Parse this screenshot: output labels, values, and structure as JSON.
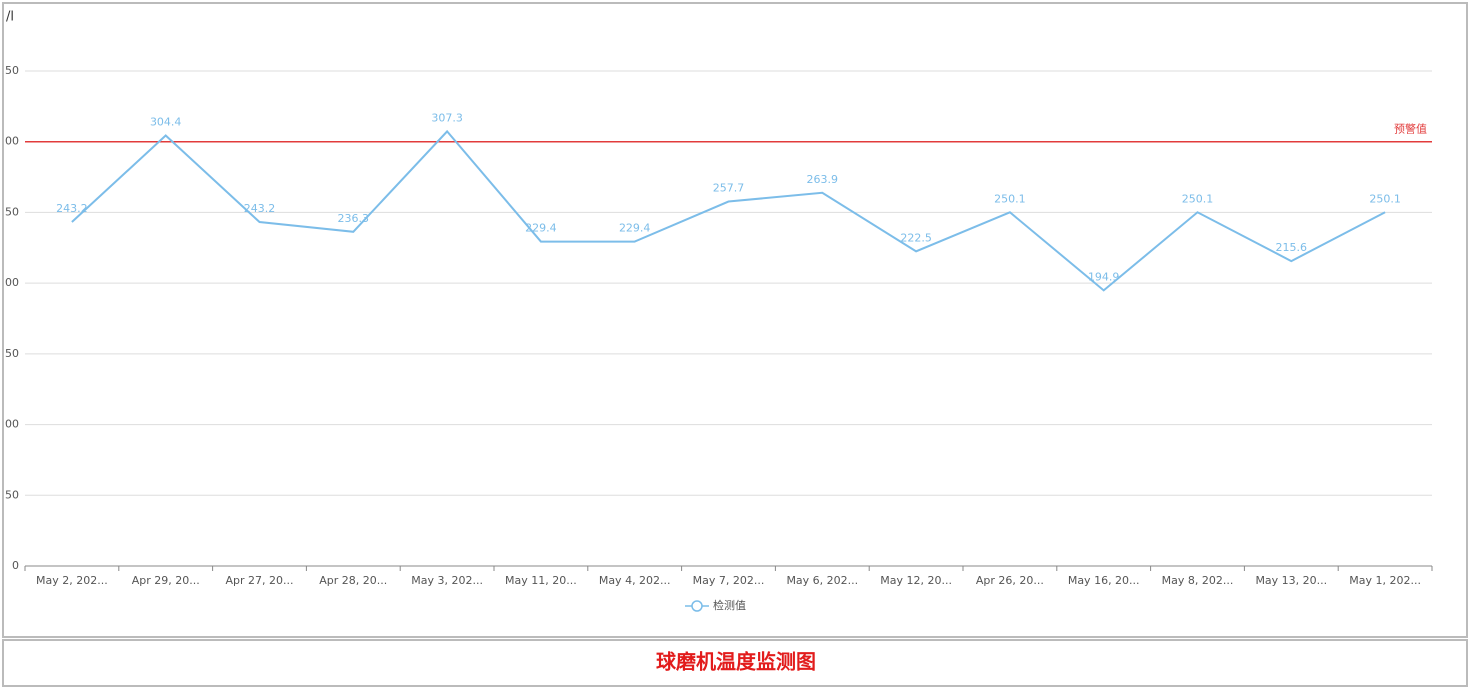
{
  "chart_data": {
    "type": "line",
    "y_label": "/l",
    "categories": [
      "May 2, 202...",
      "Apr 29, 20...",
      "Apr 27, 20...",
      "Apr 28, 20...",
      "May 3, 202...",
      "May 11, 20...",
      "May 4, 202...",
      "May 7, 202...",
      "May 6, 202...",
      "May 12, 20...",
      "Apr 26, 20...",
      "May 16, 20...",
      "May 8, 202...",
      "May 13, 20...",
      "May 1, 202..."
    ],
    "series": [
      {
        "name": "检测值",
        "color": "#7cbde9",
        "values": [
          243.2,
          304.4,
          243.2,
          236.3,
          307.3,
          229.4,
          229.4,
          257.7,
          263.9,
          222.5,
          250.1,
          194.9,
          250.1,
          215.6,
          250.1
        ]
      }
    ],
    "ylim": [
      0,
      350
    ],
    "yticks": [
      0,
      {
        "value": 50,
        "label": "50"
      },
      {
        "value": 100,
        "label": "00"
      },
      {
        "value": 150,
        "label": "50"
      },
      {
        "value": 200,
        "label": "00"
      },
      {
        "value": 250,
        "label": "50"
      },
      {
        "value": 300,
        "label": "00"
      },
      {
        "value": 350,
        "label": "50"
      }
    ],
    "grid": true,
    "mark_line": {
      "value": 300,
      "label": "预警值",
      "color": "#e23b3b"
    }
  },
  "caption": "球磨机温度监测图"
}
